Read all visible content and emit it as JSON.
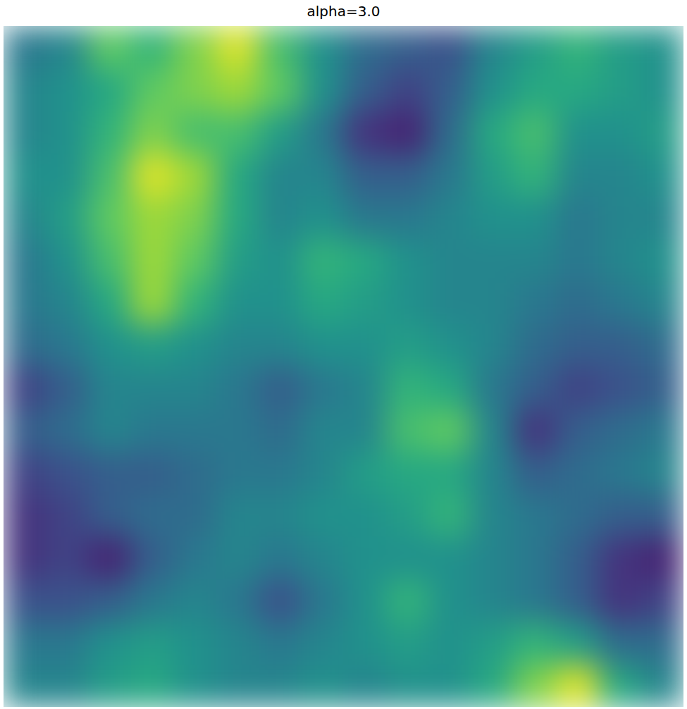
{
  "chart_data": {
    "type": "heatmap",
    "title": "alpha=3.0",
    "tick_labels": false,
    "color_range": [
      0,
      1
    ],
    "cells": [
      [
        0.4,
        0.45,
        0.75,
        0.65,
        0.8,
        0.95,
        0.7,
        0.5,
        0.35,
        0.3,
        0.25,
        0.45,
        0.55,
        0.65,
        0.55,
        0.5
      ],
      [
        0.45,
        0.5,
        0.6,
        0.75,
        0.8,
        0.85,
        0.75,
        0.5,
        0.3,
        0.2,
        0.3,
        0.5,
        0.6,
        0.6,
        0.55,
        0.5
      ],
      [
        0.45,
        0.5,
        0.65,
        0.8,
        0.7,
        0.7,
        0.55,
        0.4,
        0.15,
        0.1,
        0.35,
        0.6,
        0.7,
        0.5,
        0.5,
        0.55
      ],
      [
        0.5,
        0.5,
        0.7,
        0.95,
        0.85,
        0.6,
        0.45,
        0.45,
        0.3,
        0.3,
        0.4,
        0.55,
        0.65,
        0.45,
        0.45,
        0.5
      ],
      [
        0.45,
        0.55,
        0.75,
        0.85,
        0.8,
        0.6,
        0.45,
        0.5,
        0.4,
        0.4,
        0.45,
        0.5,
        0.5,
        0.4,
        0.45,
        0.45
      ],
      [
        0.4,
        0.5,
        0.7,
        0.85,
        0.75,
        0.55,
        0.5,
        0.65,
        0.6,
        0.5,
        0.45,
        0.45,
        0.45,
        0.4,
        0.45,
        0.5
      ],
      [
        0.4,
        0.45,
        0.6,
        0.85,
        0.65,
        0.5,
        0.5,
        0.6,
        0.55,
        0.5,
        0.45,
        0.45,
        0.4,
        0.35,
        0.4,
        0.45
      ],
      [
        0.35,
        0.4,
        0.5,
        0.55,
        0.5,
        0.45,
        0.45,
        0.5,
        0.5,
        0.55,
        0.5,
        0.45,
        0.35,
        0.3,
        0.3,
        0.35
      ],
      [
        0.2,
        0.3,
        0.45,
        0.45,
        0.45,
        0.4,
        0.3,
        0.4,
        0.45,
        0.65,
        0.6,
        0.4,
        0.3,
        0.2,
        0.25,
        0.3
      ],
      [
        0.3,
        0.35,
        0.45,
        0.4,
        0.4,
        0.4,
        0.35,
        0.45,
        0.45,
        0.7,
        0.75,
        0.45,
        0.15,
        0.3,
        0.35,
        0.4
      ],
      [
        0.2,
        0.25,
        0.3,
        0.3,
        0.35,
        0.4,
        0.4,
        0.45,
        0.55,
        0.6,
        0.6,
        0.45,
        0.3,
        0.35,
        0.4,
        0.45
      ],
      [
        0.15,
        0.2,
        0.3,
        0.35,
        0.35,
        0.45,
        0.45,
        0.5,
        0.5,
        0.55,
        0.65,
        0.45,
        0.4,
        0.35,
        0.3,
        0.3
      ],
      [
        0.15,
        0.2,
        0.1,
        0.3,
        0.4,
        0.45,
        0.4,
        0.45,
        0.5,
        0.5,
        0.5,
        0.45,
        0.4,
        0.3,
        0.15,
        0.1
      ],
      [
        0.25,
        0.25,
        0.3,
        0.4,
        0.45,
        0.4,
        0.25,
        0.4,
        0.5,
        0.65,
        0.5,
        0.45,
        0.4,
        0.3,
        0.15,
        0.2
      ],
      [
        0.4,
        0.4,
        0.5,
        0.55,
        0.5,
        0.45,
        0.4,
        0.45,
        0.5,
        0.55,
        0.5,
        0.55,
        0.65,
        0.55,
        0.35,
        0.35
      ],
      [
        0.45,
        0.45,
        0.55,
        0.6,
        0.5,
        0.45,
        0.45,
        0.5,
        0.45,
        0.5,
        0.5,
        0.6,
        0.8,
        0.95,
        0.6,
        0.45
      ]
    ]
  }
}
